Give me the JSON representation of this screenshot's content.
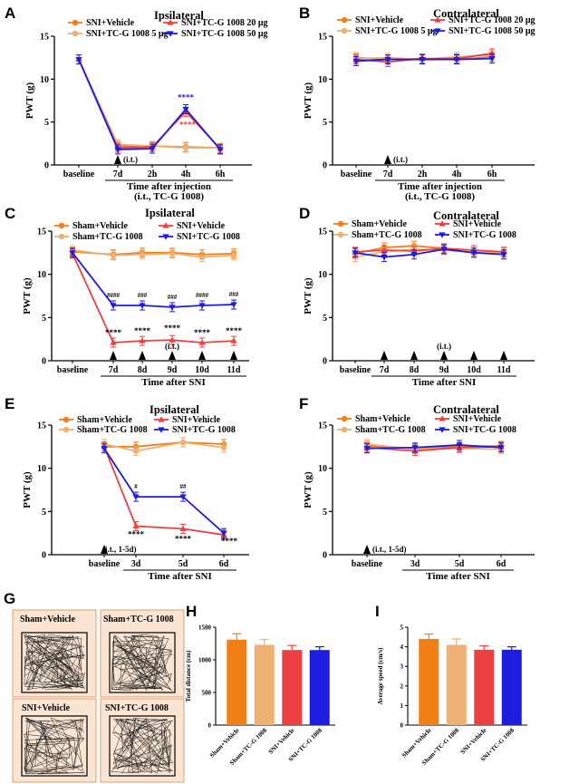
{
  "colors": {
    "orange": "#f37f17",
    "tan": "#efb173",
    "red": "#ed4040",
    "blue": "#1d1de0",
    "box_bg": "#fae5d2",
    "box_border": "#d9a07a"
  },
  "chart_data": [
    {
      "id": "A",
      "panel_label": "A",
      "title": "Ipsilateral",
      "type": "line",
      "ylabel": "PWT (g)",
      "ylim": [
        0,
        15
      ],
      "yticks": [
        "0",
        "5",
        "10",
        "15"
      ],
      "categories": [
        "baseline",
        "7d",
        "2h",
        "4h",
        "6h"
      ],
      "xlabel": "Time after injection",
      "xlabel2": "(i.t., TC-G 1008)",
      "injection_label": "(i.t.)",
      "legend": [
        "SNI+Vehicle",
        "SNI+TC-G 1008 20 μg",
        "SNI+TC-G 1008 5 μg",
        "SNI+TC-G 1008 50 μg"
      ],
      "series": [
        {
          "name": "SNI+Vehicle",
          "color_key": "orange",
          "values": [
            12.3,
            2.2,
            2.2,
            2.1,
            2.0
          ]
        },
        {
          "name": "SNI+TC-G 1008 5 μg",
          "color_key": "tan",
          "values": [
            12.3,
            2.4,
            2.2,
            2.0,
            2.0
          ]
        },
        {
          "name": "SNI+TC-G 1008 20 μg",
          "color_key": "red",
          "values": [
            12.3,
            2.0,
            2.1,
            6.2,
            1.9
          ]
        },
        {
          "name": "SNI+TC-G 1008 50 μg",
          "color_key": "blue",
          "values": [
            12.3,
            1.8,
            1.9,
            6.5,
            1.8
          ]
        }
      ],
      "sig": [
        {
          "text": "****",
          "color_key": "blue"
        },
        {
          "text": "****",
          "color_key": "red"
        }
      ]
    },
    {
      "id": "B",
      "panel_label": "B",
      "title": "Contralateral",
      "type": "line",
      "ylabel": "PWT (g)",
      "ylim": [
        0,
        15
      ],
      "yticks": [
        "0",
        "5",
        "10",
        "15"
      ],
      "categories": [
        "baseline",
        "7d",
        "2h",
        "4h",
        "6h"
      ],
      "xlabel": "Time after injection",
      "xlabel2": "(i.t., TC-G 1008)",
      "injection_label": "(i.t.)",
      "legend": [
        "SNI+Vehicle",
        "SNI+TC-G 1008 20 μg",
        "SNI+TC-G 1008 5 μg",
        "SNI+TC-G 1008 50 μg"
      ],
      "series": [
        {
          "name": "SNI+Vehicle",
          "color_key": "orange",
          "values": [
            12.5,
            12.3,
            12.4,
            12.3,
            12.6
          ]
        },
        {
          "name": "SNI+TC-G 1008 5 μg",
          "color_key": "tan",
          "values": [
            12.4,
            12.5,
            12.3,
            12.6,
            12.8
          ]
        },
        {
          "name": "SNI+TC-G 1008 20 μg",
          "color_key": "red",
          "values": [
            12.3,
            12.0,
            12.4,
            12.4,
            13.0
          ]
        },
        {
          "name": "SNI+TC-G 1008 50 μg",
          "color_key": "blue",
          "values": [
            12.1,
            12.3,
            12.3,
            12.3,
            12.4
          ]
        }
      ]
    },
    {
      "id": "C",
      "panel_label": "C",
      "title": "Ipsilateral",
      "type": "line",
      "ylabel": "PWT (g)",
      "ylim": [
        0,
        15
      ],
      "yticks": [
        "0",
        "5",
        "10",
        "15"
      ],
      "categories": [
        "baseline",
        "7d",
        "8d",
        "9d",
        "10d",
        "11d"
      ],
      "xlabel": "Time after SNI",
      "injection_label": "(i.t.)",
      "legend": [
        "Sham+Vehicle",
        "SNI+Vehicle",
        "Sham+TC-G 1008",
        "SNI+TC-G 1008"
      ],
      "series": [
        {
          "name": "Sham+Vehicle",
          "color_key": "orange",
          "values": [
            12.6,
            12.3,
            12.5,
            12.5,
            12.3,
            12.4
          ]
        },
        {
          "name": "Sham+TC-G 1008",
          "color_key": "tan",
          "values": [
            12.8,
            12.2,
            12.3,
            12.4,
            12.0,
            12.2
          ]
        },
        {
          "name": "SNI+Vehicle",
          "color_key": "red",
          "values": [
            12.4,
            2.1,
            2.3,
            2.4,
            2.1,
            2.3
          ]
        },
        {
          "name": "SNI+TC-G 1008",
          "color_key": "blue",
          "values": [
            12.5,
            6.4,
            6.4,
            6.2,
            6.4,
            6.5
          ]
        }
      ],
      "sig_hash": [
        "####",
        "###",
        "###",
        "####",
        "###"
      ],
      "sig_star": [
        "****",
        "****",
        "****",
        "****",
        "****"
      ]
    },
    {
      "id": "D",
      "panel_label": "D",
      "title": "Contralateral",
      "type": "line",
      "ylabel": "PWT (g)",
      "ylim": [
        0,
        15
      ],
      "yticks": [
        "0",
        "5",
        "10",
        "15"
      ],
      "categories": [
        "baseline",
        "7d",
        "8d",
        "9d",
        "10d",
        "11d"
      ],
      "xlabel": "Time after SNI",
      "injection_label": "(i.t.)",
      "legend": [
        "Sham+Vehicle",
        "SNI+Vehicle",
        "Sham+TC-G 1008",
        "SNI+TC-G 1008"
      ],
      "series": [
        {
          "name": "Sham+Vehicle",
          "color_key": "orange",
          "values": [
            12.4,
            13.1,
            13.3,
            13.0,
            12.5,
            12.6
          ]
        },
        {
          "name": "Sham+TC-G 1008",
          "color_key": "tan",
          "values": [
            12.0,
            12.6,
            12.9,
            12.8,
            12.6,
            12.5
          ]
        },
        {
          "name": "SNI+Vehicle",
          "color_key": "red",
          "values": [
            12.6,
            12.8,
            12.7,
            13.0,
            12.8,
            12.6
          ]
        },
        {
          "name": "SNI+TC-G 1008",
          "color_key": "blue",
          "values": [
            12.5,
            12.0,
            12.3,
            12.9,
            12.5,
            12.3
          ]
        }
      ]
    },
    {
      "id": "E",
      "panel_label": "E",
      "title": "Ipsilateral",
      "type": "line",
      "ylabel": "PWT (g)",
      "ylim": [
        0,
        15
      ],
      "yticks": [
        "0",
        "5",
        "10",
        "15"
      ],
      "categories": [
        "baseline",
        "3d",
        "5d",
        "6d"
      ],
      "xlabel": "Time after SNI",
      "injection_label": "(i.t., 1-5d)",
      "legend": [
        "Sham+Vehicle",
        "SNI+Vehicle",
        "Sham+TC-G 1008",
        "SNI+TC-G 1008"
      ],
      "series": [
        {
          "name": "Sham+Vehicle",
          "color_key": "orange",
          "values": [
            12.5,
            12.5,
            13.0,
            12.8
          ]
        },
        {
          "name": "Sham+TC-G 1008",
          "color_key": "tan",
          "values": [
            12.8,
            12.0,
            13.0,
            12.4
          ]
        },
        {
          "name": "SNI+Vehicle",
          "color_key": "red",
          "values": [
            12.5,
            3.3,
            3.0,
            2.3
          ]
        },
        {
          "name": "SNI+TC-G 1008",
          "color_key": "blue",
          "values": [
            12.3,
            6.7,
            6.7,
            2.5
          ]
        }
      ],
      "sig_hash": [
        "#",
        "##"
      ],
      "sig_star": [
        "****",
        "****",
        "****"
      ]
    },
    {
      "id": "F",
      "panel_label": "F",
      "title": "Contralateral",
      "type": "line",
      "ylabel": "PWT (g)",
      "ylim": [
        0,
        15
      ],
      "yticks": [
        "0",
        "5",
        "10",
        "15"
      ],
      "categories": [
        "baseline",
        "3d",
        "5d",
        "6d"
      ],
      "xlabel": "Time after SNI",
      "injection_label": "(i.t., 1-5d)",
      "legend": [
        "Sham+Vehicle",
        "SNI+Vehicle",
        "Sham+TC-G 1008",
        "SNI+TC-G 1008"
      ],
      "series": [
        {
          "name": "Sham+Vehicle",
          "color_key": "orange",
          "values": [
            12.6,
            12.3,
            12.5,
            12.6
          ]
        },
        {
          "name": "Sham+TC-G 1008",
          "color_key": "tan",
          "values": [
            12.8,
            12.2,
            12.3,
            12.2
          ]
        },
        {
          "name": "SNI+Vehicle",
          "color_key": "red",
          "values": [
            12.4,
            12.0,
            12.4,
            12.5
          ]
        },
        {
          "name": "SNI+TC-G 1008",
          "color_key": "blue",
          "values": [
            12.3,
            12.4,
            12.7,
            12.4
          ]
        }
      ]
    },
    {
      "id": "H",
      "panel_label": "H",
      "type": "bar",
      "ylabel": "Total distance (cm)",
      "ylim": [
        0,
        1500
      ],
      "yticks": [
        "0",
        "500",
        "1000",
        "1500"
      ],
      "categories": [
        "Sham+Vehicle",
        "Sham+TC-G 1008",
        "SNI+Vehicle",
        "SNI+TC-G 1008"
      ],
      "values": [
        1310,
        1230,
        1150,
        1150
      ],
      "errors": [
        90,
        80,
        70,
        50
      ],
      "color_keys": [
        "orange",
        "tan",
        "red",
        "blue"
      ]
    },
    {
      "id": "I",
      "panel_label": "I",
      "type": "bar",
      "ylabel": "Average speed (cm/s)",
      "ylim": [
        0,
        5
      ],
      "yticks": [
        "0",
        "1",
        "2",
        "3",
        "4",
        "5"
      ],
      "categories": [
        "Sham+Vehicle",
        "Sham+TC-G 1008",
        "SNI+Vehicle",
        "SNI+TC-G 1008"
      ],
      "values": [
        4.4,
        4.1,
        3.85,
        3.85
      ],
      "errors": [
        0.25,
        0.3,
        0.2,
        0.15
      ],
      "color_keys": [
        "orange",
        "tan",
        "red",
        "blue"
      ]
    }
  ],
  "panel_g": {
    "panel_label": "G",
    "groups": [
      "Sham+Vehicle",
      "Sham+TC-G 1008",
      "SNI+Vehicle",
      "SNI+TC-G 1008"
    ]
  }
}
